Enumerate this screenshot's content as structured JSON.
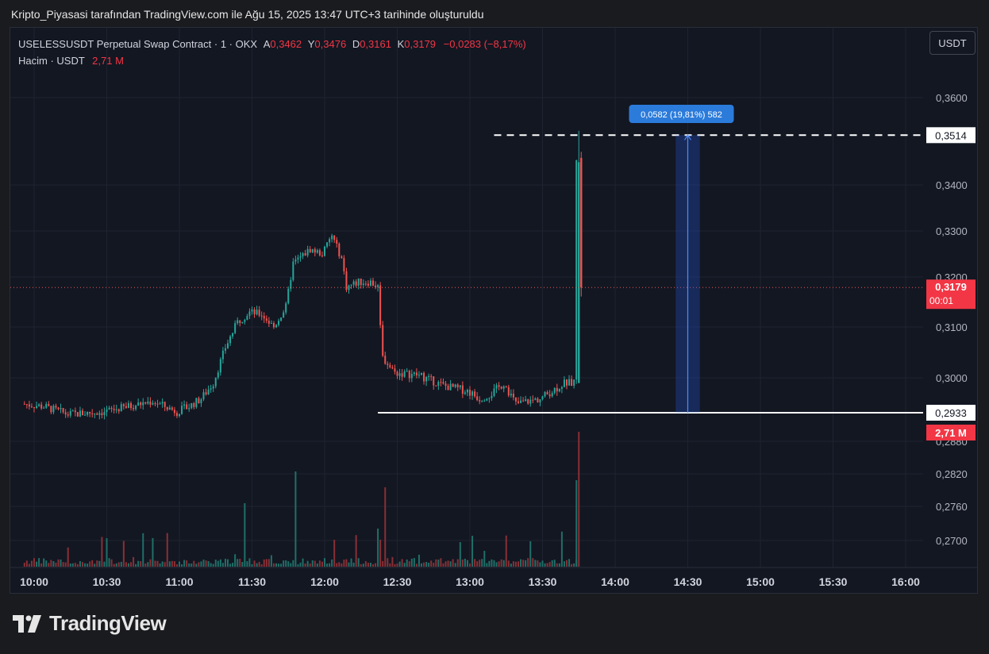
{
  "caption": "Kripto_Piyasasi tarafından TradingView.com ile Ağu 15, 2025 13:47 UTC+3 tarihinde oluşturuldu",
  "legend": {
    "symbol": "USELESSUSDT Perpetual Swap Contract · 1 · OKX",
    "open_label": "A",
    "open": "0,3462",
    "high_label": "Y",
    "high": "0,3476",
    "low_label": "D",
    "low": "0,3161",
    "close_label": "K",
    "close": "0,3179",
    "change": "−0,0283 (−8,17%)",
    "volume_label": "Hacim · USDT",
    "volume": "2,71 M"
  },
  "currency_button": "USDT",
  "brand": "TradingView",
  "colors": {
    "up": "#26a69a",
    "down": "#ef5350",
    "measure": "#2962ff",
    "background": "#131722"
  },
  "chart_data": {
    "type": "candlestick",
    "timeframe": "1",
    "x_ticks": [
      "10:00",
      "10:30",
      "11:00",
      "11:30",
      "12:00",
      "12:30",
      "13:00",
      "13:30",
      "14:00",
      "14:30",
      "15:00",
      "15:30",
      "16:00"
    ],
    "y_ticks": [
      "0,3600",
      "0,3400",
      "0,3300",
      "0,3200",
      "0,3100",
      "0,3000",
      "0,2880",
      "0,2820",
      "0,2760",
      "0,2700"
    ],
    "price_path": [
      [
        "09:56",
        0.295
      ],
      [
        "10:05",
        0.2945
      ],
      [
        "10:15",
        0.293
      ],
      [
        "10:30",
        0.2935
      ],
      [
        "10:40",
        0.2945
      ],
      [
        "10:50",
        0.2955
      ],
      [
        "11:00",
        0.2935
      ],
      [
        "11:05",
        0.2945
      ],
      [
        "11:10",
        0.296
      ],
      [
        "11:15",
        0.299
      ],
      [
        "11:20",
        0.306
      ],
      [
        "11:25",
        0.311
      ],
      [
        "11:30",
        0.313
      ],
      [
        "11:35",
        0.3125
      ],
      [
        "11:40",
        0.31
      ],
      [
        "11:45",
        0.314
      ],
      [
        "11:48",
        0.323
      ],
      [
        "11:55",
        0.326
      ],
      [
        "12:00",
        0.325
      ],
      [
        "12:04",
        0.329
      ],
      [
        "12:08",
        0.324
      ],
      [
        "12:10",
        0.318
      ],
      [
        "12:15",
        0.319
      ],
      [
        "12:20",
        0.319
      ],
      [
        "12:23",
        0.318
      ],
      [
        "12:25",
        0.304
      ],
      [
        "12:30",
        0.301
      ],
      [
        "12:40",
        0.3005
      ],
      [
        "12:50",
        0.2985
      ],
      [
        "13:00",
        0.2975
      ],
      [
        "13:05",
        0.296
      ],
      [
        "13:10",
        0.297
      ],
      [
        "13:15",
        0.299
      ],
      [
        "13:20",
        0.295
      ],
      [
        "13:30",
        0.296
      ],
      [
        "13:35",
        0.2975
      ],
      [
        "13:40",
        0.299
      ],
      [
        "13:44",
        0.299
      ],
      [
        "13:45",
        0.346
      ],
      [
        "13:46",
        0.3179
      ]
    ],
    "last": {
      "open": 0.3462,
      "high": 0.3476,
      "low": 0.3161,
      "close": 0.3179
    },
    "last_price_label": "0,3179",
    "countdown_label": "00:01",
    "volume_last_label": "2,71 M",
    "horizontal_lines": [
      {
        "price": 0.3514,
        "label": "0,3514",
        "style": "dashed"
      },
      {
        "price": 0.2933,
        "label": "0,2933",
        "style": "solid"
      }
    ],
    "measure": {
      "from": 0.2933,
      "to": 0.3514,
      "label": "0,0582 (19,81%) 582",
      "time_start": "14:25",
      "time_end": "14:35"
    }
  }
}
